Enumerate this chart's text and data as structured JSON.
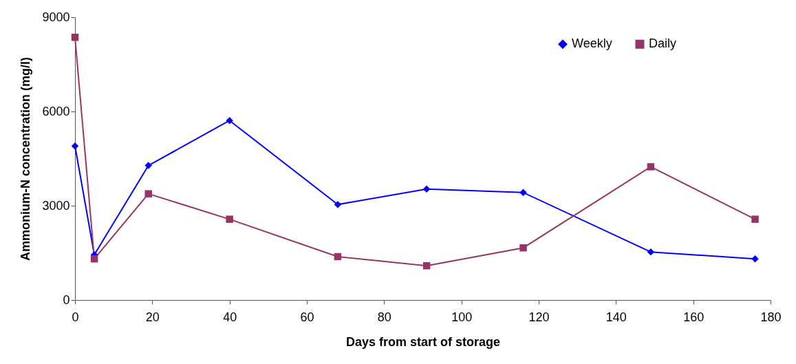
{
  "chart_data": {
    "type": "line",
    "xlabel": "Days from start of storage",
    "ylabel": "Ammonium-N concentration (mg/l)",
    "xlim": [
      0,
      180
    ],
    "xticks": [
      0,
      20,
      40,
      60,
      80,
      100,
      120,
      140,
      160,
      180
    ],
    "ylim": [
      0,
      9000
    ],
    "yticks": [
      0,
      3000,
      6000,
      9000
    ],
    "grid": false,
    "legend": "top right",
    "series": [
      {
        "name": "Weekly",
        "color": "#0000ff",
        "marker": "diamond",
        "x": [
          0,
          5,
          19,
          40,
          68,
          91,
          116,
          149,
          176
        ],
        "values": [
          4900,
          1440,
          4280,
          5710,
          3040,
          3530,
          3420,
          1530,
          1310
        ]
      },
      {
        "name": "Daily",
        "color": "#993366",
        "marker": "square",
        "x": [
          0,
          5,
          19,
          40,
          68,
          91,
          116,
          149,
          176
        ],
        "values": [
          8360,
          1310,
          3380,
          2570,
          1380,
          1090,
          1660,
          4240,
          2570
        ]
      }
    ]
  }
}
